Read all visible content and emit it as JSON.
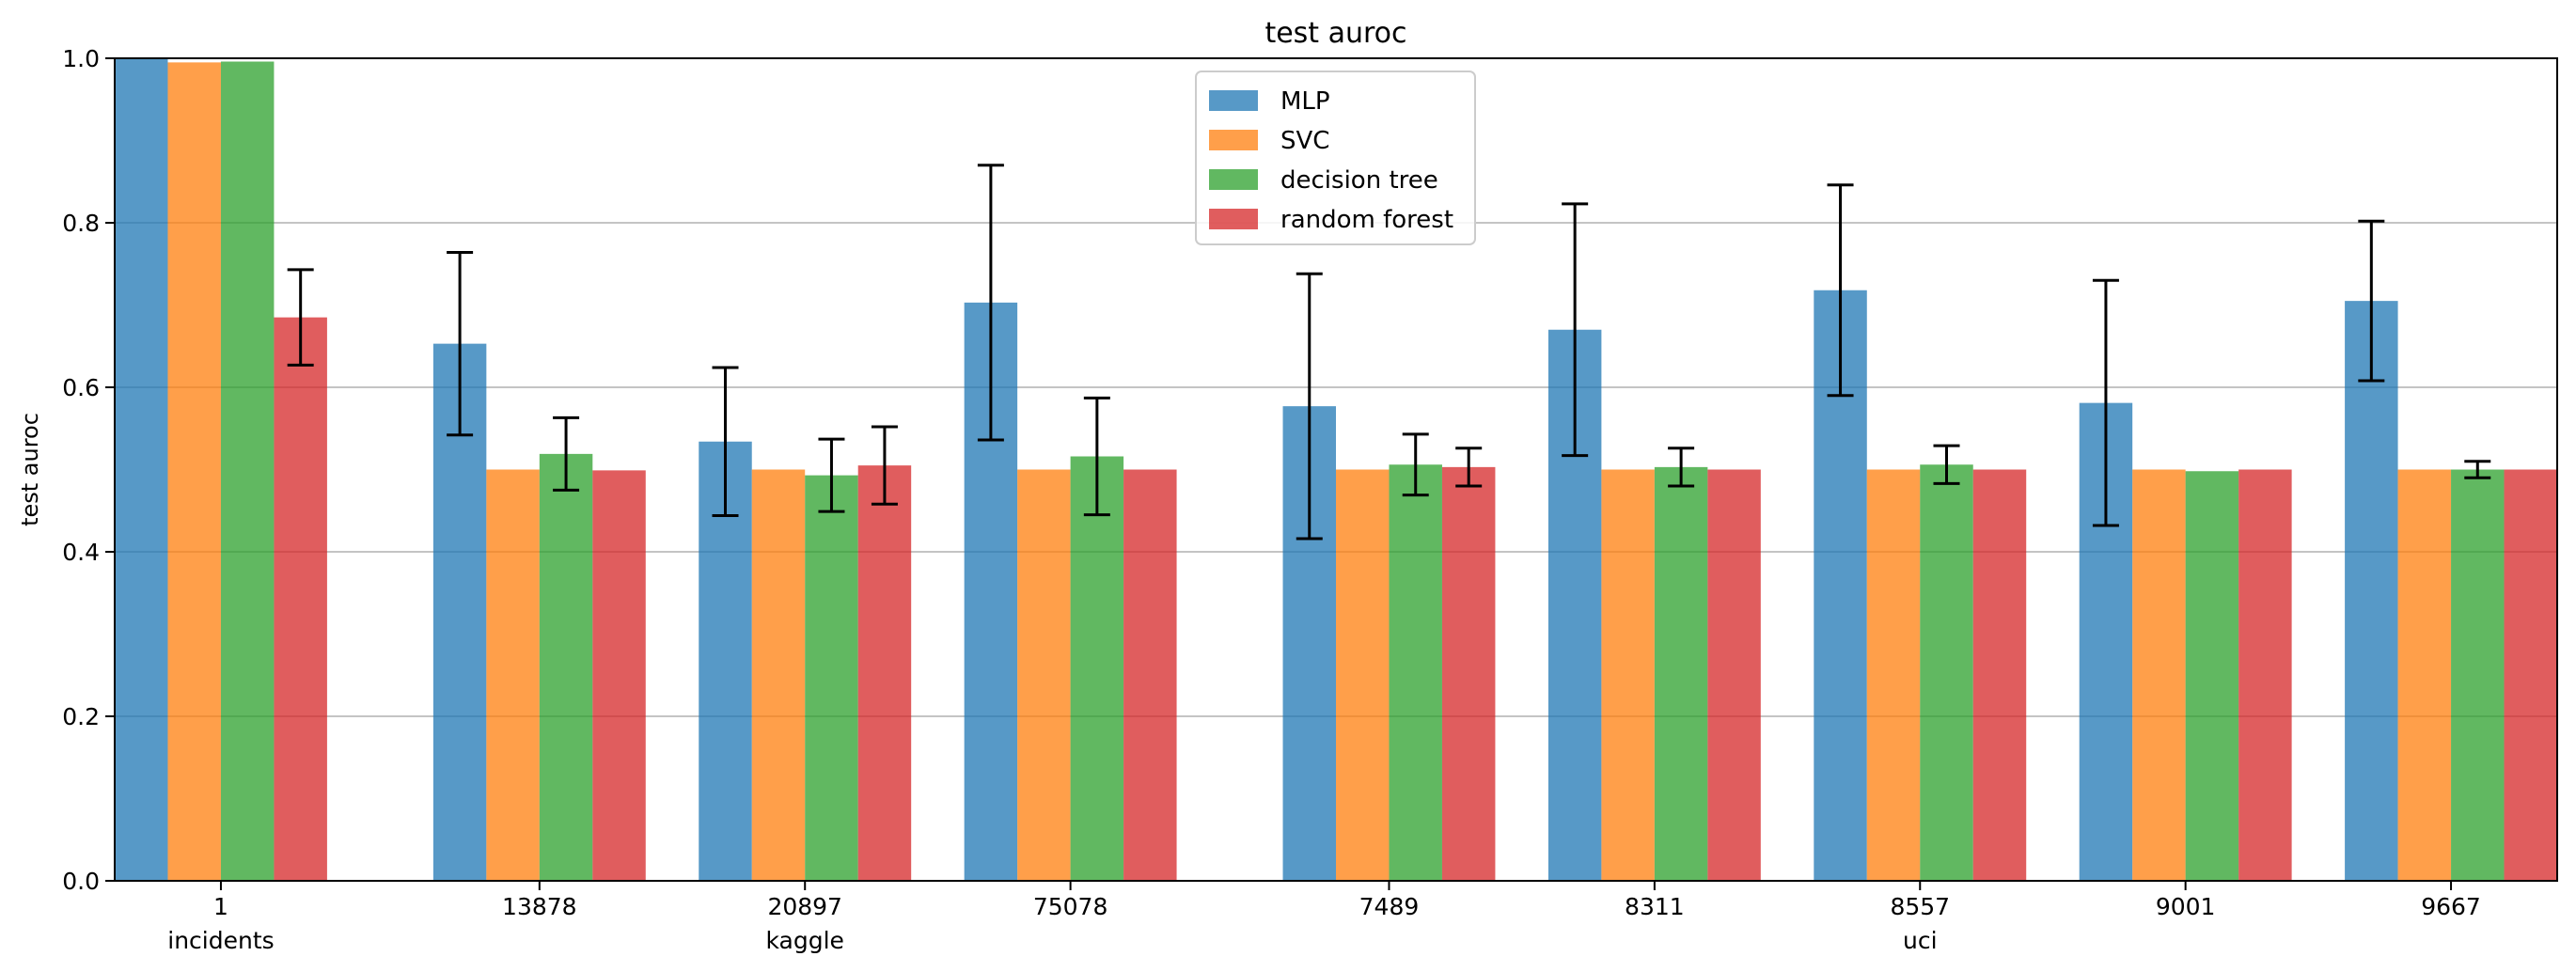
{
  "chart_data": {
    "type": "bar",
    "title": "test auroc",
    "xlabel": "",
    "ylabel": "test auroc",
    "ylim": [
      0,
      1.0
    ],
    "yticks": [
      "0.0",
      "0.2",
      "0.4",
      "0.6",
      "0.8",
      "1.0"
    ],
    "grid": "horizontal",
    "legend_position": "top-center",
    "groups": [
      {
        "name": "incidents",
        "categories": [
          "1"
        ]
      },
      {
        "name": "kaggle",
        "categories": [
          "13878",
          "20897",
          "75078"
        ]
      },
      {
        "name": "uci",
        "categories": [
          "7489",
          "8311",
          "8557",
          "9001",
          "9667"
        ]
      }
    ],
    "categories": [
      "1",
      "13878",
      "20897",
      "75078",
      "7489",
      "8311",
      "8557",
      "9001",
      "9667"
    ],
    "series": [
      {
        "name": "MLP",
        "color": "#1f77b4",
        "values": [
          1.0,
          0.653,
          0.534,
          0.703,
          0.577,
          0.67,
          0.718,
          0.581,
          0.705
        ],
        "errors": [
          null,
          0.111,
          0.09,
          0.167,
          0.161,
          0.153,
          0.128,
          0.149,
          0.097
        ]
      },
      {
        "name": "SVC",
        "color": "#ff7f0e",
        "values": [
          0.995,
          0.5,
          0.5,
          0.5,
          0.5,
          0.5,
          0.5,
          0.5,
          0.5
        ],
        "errors": [
          null,
          null,
          null,
          null,
          null,
          null,
          null,
          null,
          null
        ]
      },
      {
        "name": "decision tree",
        "color": "#2ca02c",
        "values": [
          0.996,
          0.519,
          0.493,
          0.516,
          0.506,
          0.503,
          0.506,
          0.498,
          0.5
        ],
        "errors": [
          null,
          0.044,
          0.044,
          0.071,
          0.037,
          0.023,
          0.023,
          null,
          0.01
        ]
      },
      {
        "name": "random forest",
        "color": "#d62728",
        "values": [
          0.685,
          0.499,
          0.505,
          0.5,
          0.503,
          0.5,
          0.5,
          0.5,
          0.5
        ],
        "errors": [
          0.058,
          null,
          0.047,
          null,
          0.023,
          null,
          null,
          null,
          null
        ]
      }
    ]
  }
}
